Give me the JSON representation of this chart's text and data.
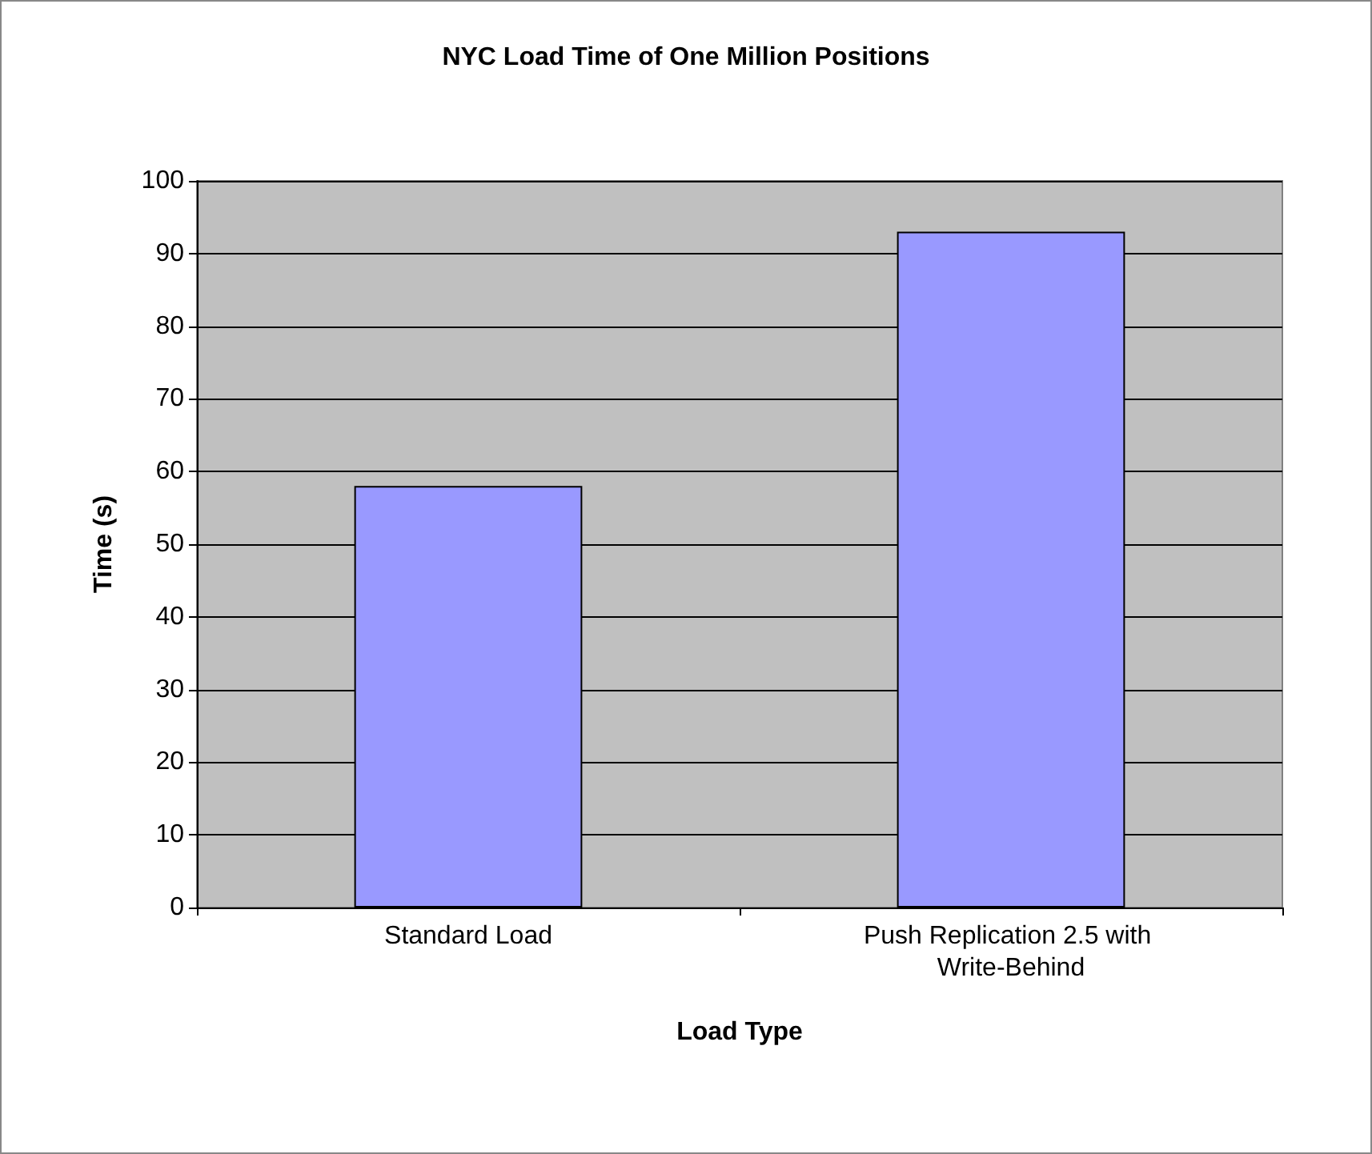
{
  "chart_data": {
    "type": "bar",
    "title": "NYC Load Time of One Million Positions",
    "xlabel": "Load Type",
    "ylabel": "Time (s)",
    "categories": [
      "Standard Load",
      "Push Replication 2.5 with Write-Behind"
    ],
    "series": [
      {
        "color": "#9999ff",
        "values": [
          58,
          93
        ]
      }
    ],
    "ylim": [
      0,
      100
    ],
    "yticks": [
      0,
      10,
      20,
      30,
      40,
      50,
      60,
      70,
      80,
      90,
      100
    ],
    "grid": "y"
  }
}
